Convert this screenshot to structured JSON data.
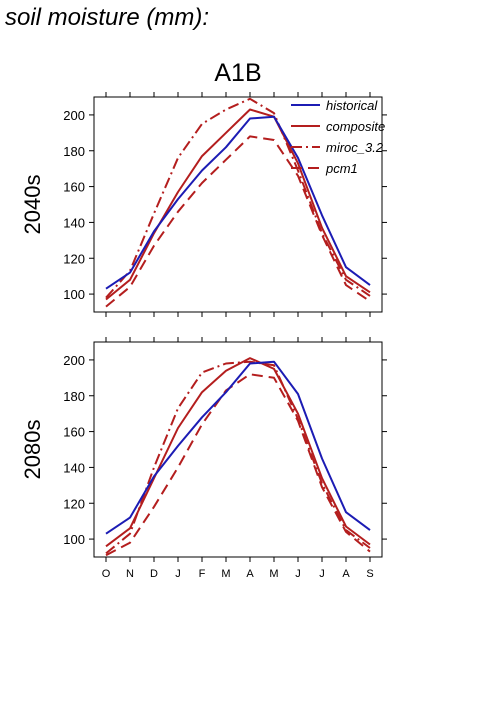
{
  "title": "soil moisture (mm):",
  "colors": {
    "historical": "#1c1cb4",
    "models": "#b41e1e"
  },
  "chart_data": {
    "type": "line",
    "scenario": "A1B",
    "categories": [
      "O",
      "N",
      "D",
      "J",
      "F",
      "M",
      "A",
      "M",
      "J",
      "J",
      "A",
      "S"
    ],
    "ylim": [
      90,
      210
    ],
    "yticks": [
      100,
      120,
      140,
      160,
      180,
      200
    ],
    "legend": {
      "placement": "top-right",
      "entries": [
        {
          "key": "historical",
          "label": "historical",
          "style": "solid",
          "color": "#1c1cb4"
        },
        {
          "key": "composite",
          "label": "composite",
          "style": "solid",
          "color": "#b41e1e"
        },
        {
          "key": "miroc",
          "label": "miroc_3.2",
          "style": "dashdot",
          "color": "#b41e1e"
        },
        {
          "key": "pcm1",
          "label": "pcm1",
          "style": "dashed",
          "color": "#b41e1e"
        }
      ]
    },
    "panels": [
      {
        "label": "2040s",
        "series": [
          {
            "key": "historical",
            "values": [
              103,
              112,
              135,
              153,
              169,
              182,
              198,
              199,
              176,
              144,
              115,
              105
            ]
          },
          {
            "key": "composite",
            "values": [
              97,
              108,
              134,
              157,
              177,
              190,
              203,
              199,
              173,
              137,
              110,
              101
            ]
          },
          {
            "key": "miroc",
            "values": [
              98,
              113,
              145,
              176,
              195,
              203,
              209,
              201,
              169,
              134,
              108,
              99
            ]
          },
          {
            "key": "pcm1",
            "values": [
              93,
              104,
              127,
              146,
              162,
              175,
              188,
              186,
              166,
              133,
              105,
              96
            ]
          }
        ]
      },
      {
        "label": "2080s",
        "series": [
          {
            "key": "historical",
            "values": [
              103,
              112,
              135,
              152,
              168,
              182,
              198,
              199,
              181,
              145,
              115,
              105
            ]
          },
          {
            "key": "composite",
            "values": [
              96,
              106,
              134,
              162,
              182,
              194,
              201,
              195,
              170,
              134,
              107,
              97
            ]
          },
          {
            "key": "miroc",
            "values": [
              92,
              103,
              140,
              173,
              193,
              198,
              199,
              197,
              167,
              131,
              105,
              95
            ]
          },
          {
            "key": "pcm1",
            "values": [
              91,
              98,
              118,
              140,
              164,
              183,
              192,
              190,
              166,
              129,
              104,
              93
            ]
          }
        ]
      }
    ]
  }
}
